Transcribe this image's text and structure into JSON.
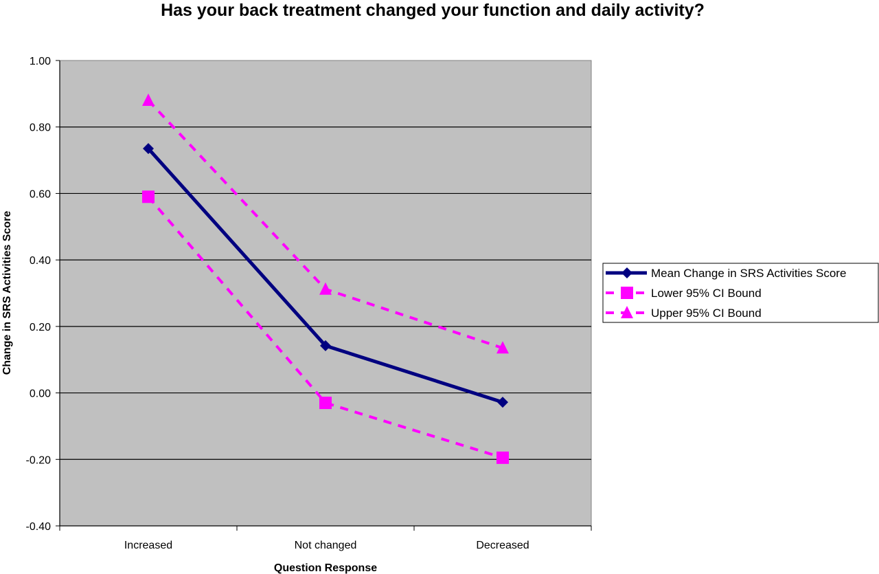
{
  "chart_data": {
    "type": "line",
    "title": "Has your back treatment changed your function and daily activity?",
    "xlabel": "Question Response",
    "ylabel": "Change in SRS Activities Score",
    "categories": [
      "Increased",
      "Not changed",
      "Decreased"
    ],
    "ylim": [
      -0.4,
      1.0
    ],
    "yticks": [
      "1.00",
      "0.80",
      "0.60",
      "0.40",
      "0.20",
      "0.00",
      "-0.20",
      "-0.40"
    ],
    "grid": true,
    "legend_position": "right",
    "plot_background": "#c0c0c0",
    "series": [
      {
        "name": "Mean Change in SRS Activities Score",
        "values": [
          0.735,
          0.142,
          -0.028
        ],
        "color": "#000080",
        "marker": "diamond",
        "dash": false
      },
      {
        "name": "Lower 95% CI Bound",
        "values": [
          0.59,
          -0.03,
          -0.195
        ],
        "color": "#ff00ff",
        "marker": "square",
        "dash": true
      },
      {
        "name": "Upper 95% CI Bound",
        "values": [
          0.88,
          0.312,
          0.135
        ],
        "color": "#ff00ff",
        "marker": "triangle",
        "dash": true
      }
    ]
  }
}
